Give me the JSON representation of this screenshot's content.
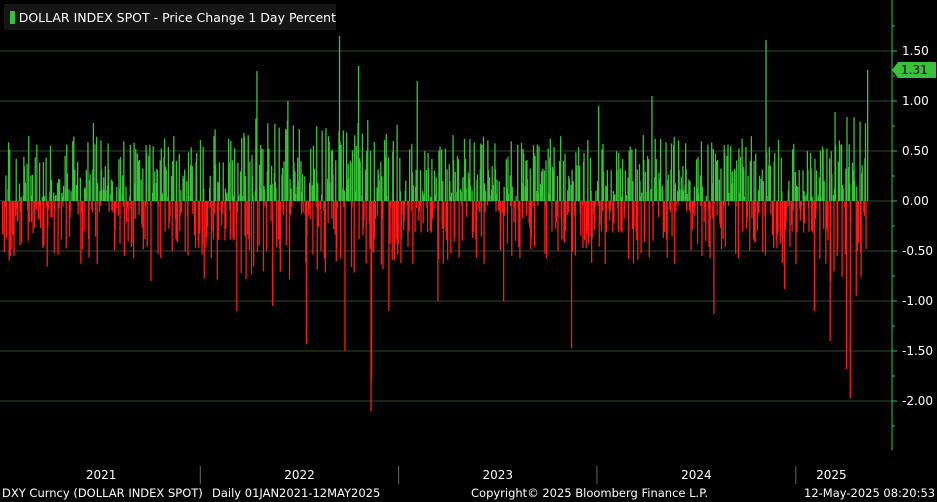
{
  "chart_data": {
    "type": "bar",
    "title": "DOLLAR INDEX SPOT - Price Change 1 Day Percent",
    "legend": [
      {
        "name": "DOLLAR INDEX SPOT - Price Change 1 Day Percent",
        "color": "#39c33a"
      }
    ],
    "y_ticks": [
      "1.50",
      "1.00",
      "0.50",
      "0.00",
      "-0.50",
      "-1.00",
      "-1.50",
      "-2.00"
    ],
    "y_tick_values": [
      1.5,
      1.0,
      0.5,
      0.0,
      -0.5,
      -1.0,
      -1.5,
      -2.0
    ],
    "ylim": [
      -2.5,
      2.0
    ],
    "x_ticks": [
      "2021",
      "2022",
      "2023",
      "2024",
      "2025"
    ],
    "x_range": [
      "2021-01-01",
      "2025-05-12"
    ],
    "last_value": 1.31,
    "last_value_label": "1.31",
    "grid": true,
    "colors": {
      "positive": "#39c33a",
      "negative": "#ff1a1a",
      "grid": "#2b4a2b",
      "axis": "#39c33a"
    },
    "seed_spikes": [
      {
        "date": "2021-06-17",
        "value": 0.78
      },
      {
        "date": "2021-10-01",
        "value": -0.8
      },
      {
        "date": "2022-03-08",
        "value": -1.1
      },
      {
        "date": "2022-04-14",
        "value": 1.3
      },
      {
        "date": "2022-05-13",
        "value": -1.05
      },
      {
        "date": "2022-06-10",
        "value": 1.0
      },
      {
        "date": "2022-07-14",
        "value": -1.43
      },
      {
        "date": "2022-09-13",
        "value": 1.65
      },
      {
        "date": "2022-09-23",
        "value": -1.5
      },
      {
        "date": "2022-10-18",
        "value": 1.35
      },
      {
        "date": "2022-11-10",
        "value": -2.1
      },
      {
        "date": "2022-11-11",
        "value": -1.8
      },
      {
        "date": "2022-12-13",
        "value": -1.1
      },
      {
        "date": "2023-02-03",
        "value": 1.2
      },
      {
        "date": "2023-03-13",
        "value": -1.0
      },
      {
        "date": "2023-07-12",
        "value": -1.0
      },
      {
        "date": "2023-11-14",
        "value": -1.47
      },
      {
        "date": "2024-01-03",
        "value": 0.95
      },
      {
        "date": "2024-04-10",
        "value": 1.05
      },
      {
        "date": "2024-08-02",
        "value": -1.13
      },
      {
        "date": "2024-11-06",
        "value": 1.61
      },
      {
        "date": "2024-12-10",
        "value": -0.88
      },
      {
        "date": "2025-02-03",
        "value": -1.1
      },
      {
        "date": "2025-03-04",
        "value": -1.4
      },
      {
        "date": "2025-04-03",
        "value": -1.68
      },
      {
        "date": "2025-04-10",
        "value": -1.97
      },
      {
        "date": "2025-04-21",
        "value": -0.95
      },
      {
        "date": "2025-05-12",
        "value": 1.31
      }
    ]
  },
  "footer": {
    "ticker": "DXY Curncy (DOLLAR INDEX SPOT)",
    "range": "Daily 01JAN2021-12MAY2025",
    "copyright": "Copyright© 2025 Bloomberg Finance L.P.",
    "timestamp": "12-May-2025 08:20:53"
  }
}
